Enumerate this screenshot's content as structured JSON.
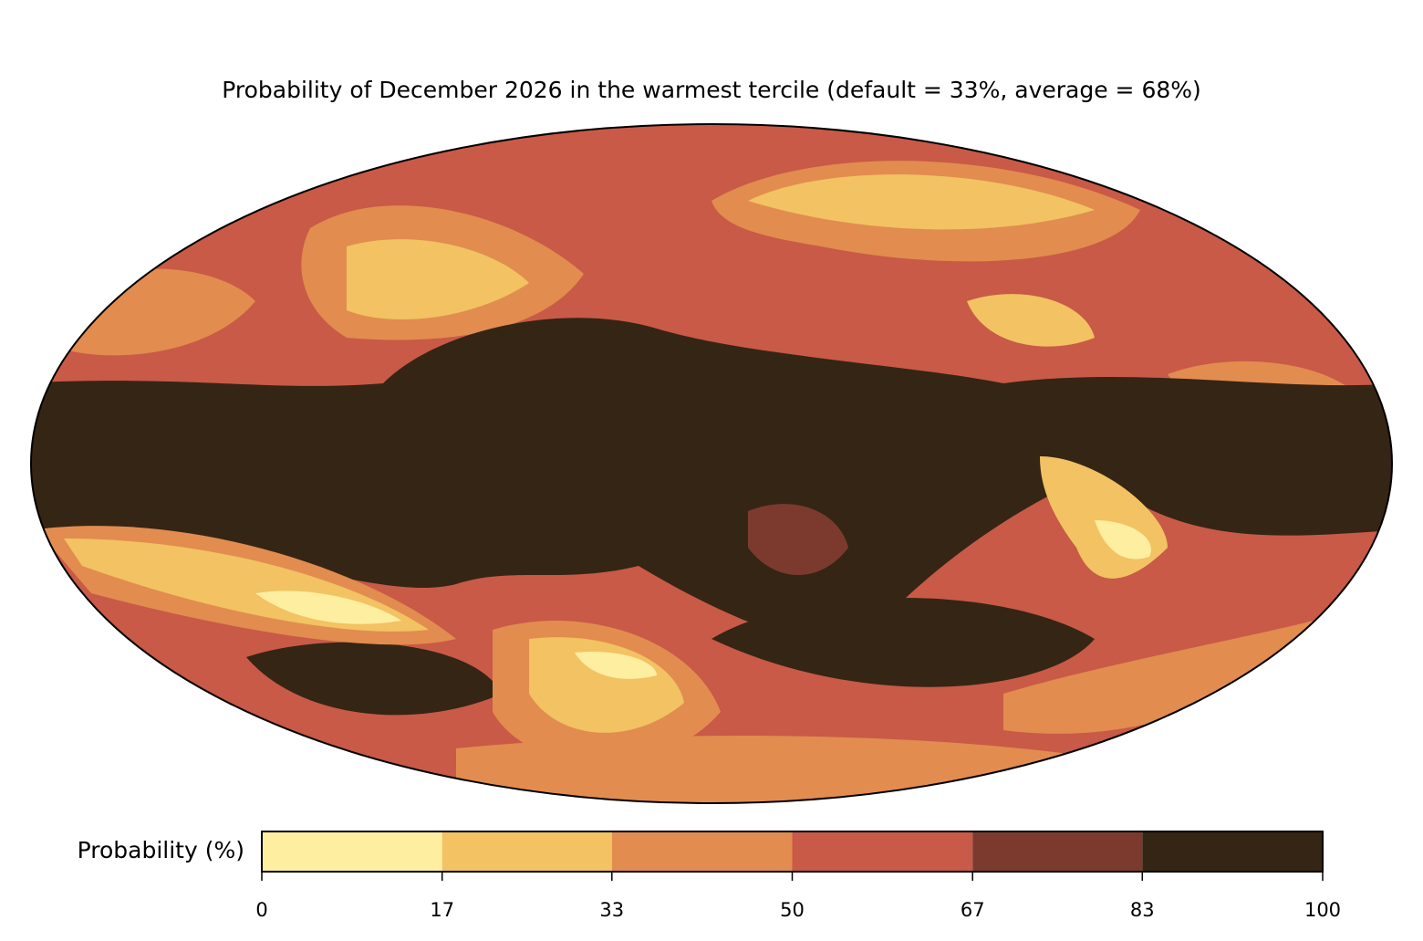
{
  "title": "Probability of December 2026 in the warmest tercile (default = 33%, average = 68%)",
  "colorbar": {
    "label": "Probability (%)",
    "lim": [
      0,
      100
    ],
    "ticks": [
      0,
      17,
      33,
      50,
      67,
      83,
      100
    ],
    "colors": [
      "#fdeea0",
      "#f2c263",
      "#e28c4f",
      "#c85a47",
      "#7c3a2f",
      "#352515"
    ]
  }
}
